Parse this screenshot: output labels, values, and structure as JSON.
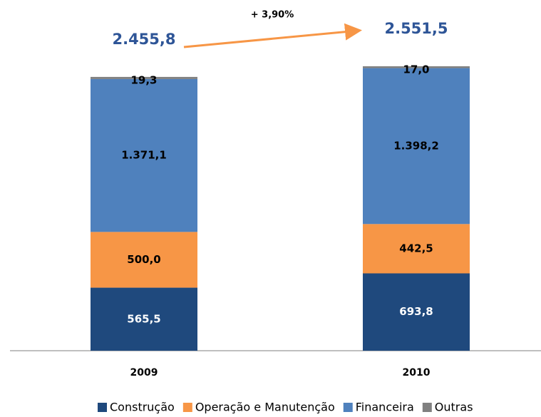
{
  "chart_data": {
    "type": "stacked_bar",
    "categories": [
      "2009",
      "2010"
    ],
    "series": [
      {
        "name": "Construção",
        "color": "#1f497d",
        "label_color": "#ffffff",
        "values": [
          565.5,
          693.8
        ],
        "value_labels": [
          "565,5",
          "693,8"
        ]
      },
      {
        "name": "Operação e Manutenção",
        "color": "#f79646",
        "label_color": "#000000",
        "values": [
          500.0,
          442.5
        ],
        "value_labels": [
          "500,0",
          "442,5"
        ]
      },
      {
        "name": "Financeira",
        "color": "#4f81bd",
        "label_color": "#000000",
        "values": [
          1371.1,
          1398.2
        ],
        "value_labels": [
          "1.371,1",
          "1.398,2"
        ]
      },
      {
        "name": "Outras",
        "color": "#808080",
        "label_color": "#000000",
        "values": [
          19.3,
          17.0
        ],
        "value_labels": [
          "19,3",
          "17,0"
        ]
      }
    ],
    "totals": [
      2455.8,
      2551.5
    ],
    "total_labels": [
      "2.455,8",
      "2.551,5"
    ],
    "annotation": "+ 3,90%"
  }
}
